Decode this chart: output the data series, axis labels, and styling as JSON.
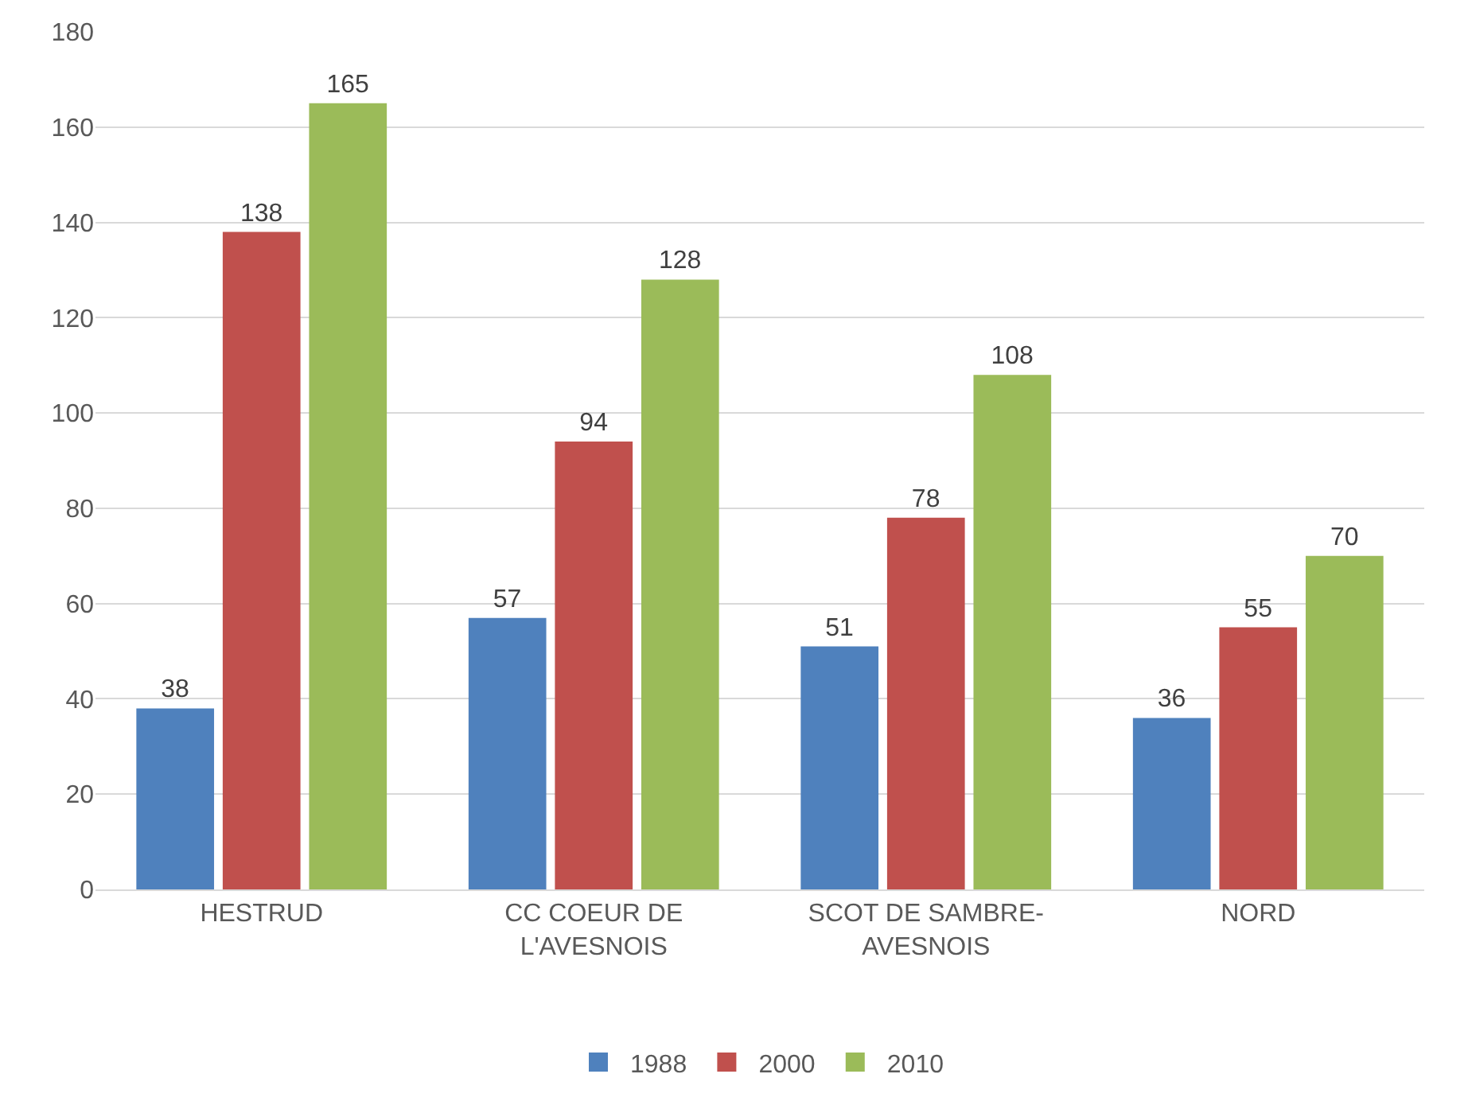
{
  "chart_data": {
    "type": "bar",
    "categories": [
      "HESTRUD",
      "CC COEUR DE L'AVESNOIS",
      "SCOT DE SAMBRE-AVESNOIS",
      "NORD"
    ],
    "series": [
      {
        "name": "1988",
        "color": "#4f81bd",
        "values": [
          38,
          57,
          51,
          36
        ]
      },
      {
        "name": "2000",
        "color": "#c0504d",
        "values": [
          138,
          94,
          78,
          55
        ]
      },
      {
        "name": "2010",
        "color": "#9bbb59",
        "values": [
          165,
          128,
          108,
          70
        ]
      }
    ],
    "ylim": [
      0,
      180
    ],
    "yticks": [
      0,
      20,
      40,
      60,
      80,
      100,
      120,
      140,
      160,
      180
    ],
    "grid": "y",
    "legend": "bottom",
    "data_labels": true
  }
}
